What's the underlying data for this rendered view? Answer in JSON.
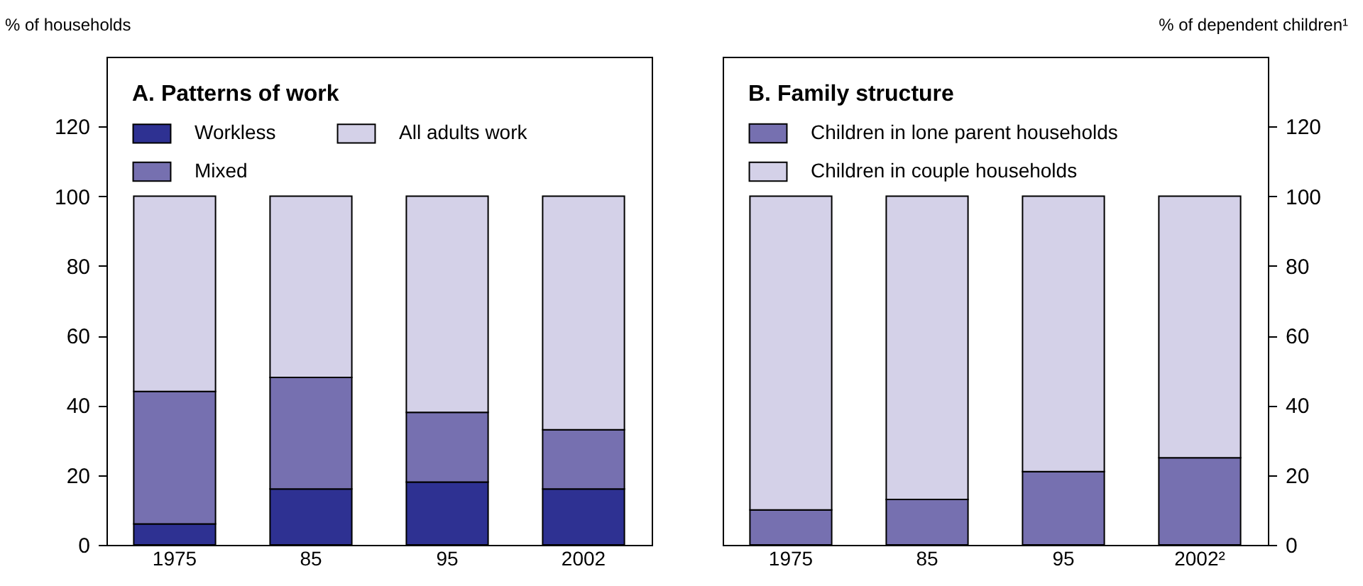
{
  "chart_data": [
    {
      "type": "bar",
      "stacked": true,
      "title": "A. Patterns of work",
      "ylabel": "% of households",
      "categories": [
        "1975",
        "85",
        "95",
        "2002"
      ],
      "ylim": [
        0,
        140
      ],
      "yticks": [
        0,
        20,
        40,
        60,
        80,
        100,
        120
      ],
      "legend": "top left",
      "series": [
        {
          "name": "Workless",
          "color": "#2e3192",
          "values": [
            6,
            16,
            18,
            16
          ]
        },
        {
          "name": "Mixed",
          "color": "#7670b0",
          "values": [
            38,
            32,
            20,
            17
          ]
        },
        {
          "name": "All adults work",
          "color": "#d4d1e8",
          "values": [
            56,
            52,
            62,
            67
          ]
        }
      ]
    },
    {
      "type": "bar",
      "stacked": true,
      "title": "B. Family structure",
      "y2label": "% of dependent children¹",
      "categories": [
        "1975",
        "85",
        "95",
        "2002²"
      ],
      "y2lim": [
        0,
        140
      ],
      "y2ticks": [
        0,
        20,
        40,
        60,
        80,
        100,
        120
      ],
      "legend": "top left",
      "series": [
        {
          "name": "Children in lone parent households",
          "color": "#7670b0",
          "axis": "y2",
          "values": [
            10,
            13,
            21,
            25
          ]
        },
        {
          "name": "Children in couple households",
          "color": "#d4d1e8",
          "axis": "y2",
          "values": [
            90,
            87,
            79,
            75
          ]
        }
      ]
    }
  ]
}
